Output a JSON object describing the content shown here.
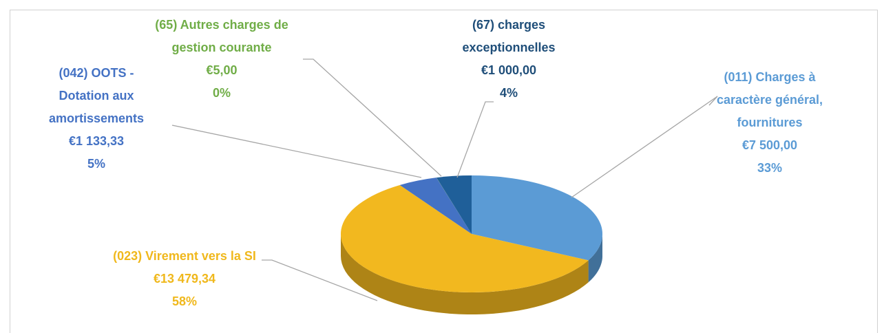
{
  "chart_data": {
    "type": "pie",
    "three_d": true,
    "categories": [
      "(011) Charges à caractère général, fournitures",
      "(023) Virement vers la SI",
      "(042) OOTS - Dotation aux amortissements",
      "(65) Autres charges de gestion courante",
      "(67) charges exceptionnelles"
    ],
    "values": [
      7500,
      13479.34,
      1133.33,
      5,
      1000
    ],
    "value_labels": [
      "€7 500,00",
      "€13 479,34",
      "€1 133,33",
      "€5,00",
      "€1 000,00"
    ],
    "percent_labels": [
      "33%",
      "58%",
      "5%",
      "0%",
      "4%"
    ],
    "colors": [
      "#5b9bd5",
      "#f2b81f",
      "#4472c4",
      "#70ad47",
      "#1f5f99"
    ],
    "label_colors": [
      "#5b9bd5",
      "#f0b81c",
      "#4472c4",
      "#70ad47",
      "#1f4e79"
    ]
  }
}
